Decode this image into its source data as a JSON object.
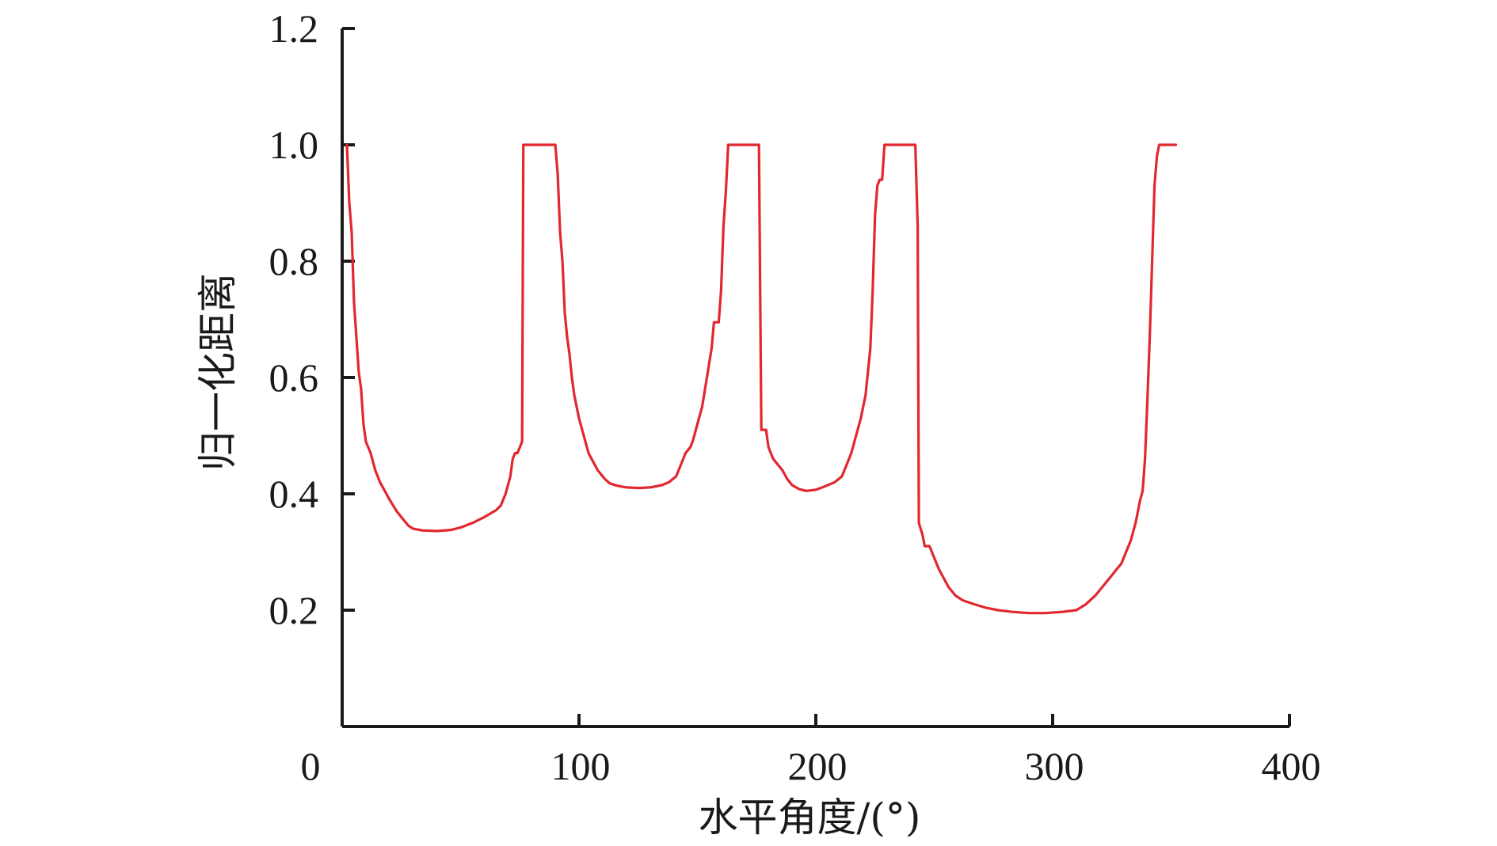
{
  "chart_data": {
    "type": "line",
    "title": "",
    "xlabel": "水平角度/(°)",
    "ylabel": "归一化距离",
    "xlim": [
      0,
      400
    ],
    "ylim": [
      0,
      1.2
    ],
    "xticks": [
      0,
      100,
      200,
      300,
      400
    ],
    "yticks": [
      0.2,
      0.4,
      0.6,
      0.8,
      1.0,
      1.2
    ],
    "xtick_labels": [
      "0",
      "100",
      "200",
      "300",
      "400"
    ],
    "ytick_labels": [
      "0.2",
      "0.4",
      "0.6",
      "0.8",
      "1.0",
      "1.2"
    ],
    "grid": false,
    "series": [
      {
        "color": "#e0282e",
        "points": [
          [
            2,
            1.0
          ],
          [
            3,
            0.9
          ],
          [
            4,
            0.85
          ],
          [
            5,
            0.73
          ],
          [
            6,
            0.67
          ],
          [
            7,
            0.61
          ],
          [
            8,
            0.58
          ],
          [
            9,
            0.52
          ],
          [
            10,
            0.49
          ],
          [
            12,
            0.47
          ],
          [
            14,
            0.44
          ],
          [
            16,
            0.42
          ],
          [
            18,
            0.405
          ],
          [
            20,
            0.39
          ],
          [
            23,
            0.37
          ],
          [
            26,
            0.355
          ],
          [
            28,
            0.345
          ],
          [
            30,
            0.34
          ],
          [
            34,
            0.337
          ],
          [
            40,
            0.336
          ],
          [
            46,
            0.338
          ],
          [
            50,
            0.342
          ],
          [
            55,
            0.35
          ],
          [
            60,
            0.36
          ],
          [
            65,
            0.372
          ],
          [
            67,
            0.38
          ],
          [
            69,
            0.4
          ],
          [
            71,
            0.43
          ],
          [
            72,
            0.46
          ],
          [
            73,
            0.47
          ],
          [
            74,
            0.47
          ],
          [
            75,
            0.48
          ],
          [
            76,
            0.49
          ],
          [
            76.5,
            1.0
          ],
          [
            80,
            1.0
          ],
          [
            85,
            1.0
          ],
          [
            90,
            1.0
          ],
          [
            91,
            0.95
          ],
          [
            92,
            0.85
          ],
          [
            93,
            0.8
          ],
          [
            94,
            0.71
          ],
          [
            95,
            0.67
          ],
          [
            96,
            0.64
          ],
          [
            97,
            0.6
          ],
          [
            98,
            0.57
          ],
          [
            100,
            0.53
          ],
          [
            102,
            0.5
          ],
          [
            104,
            0.47
          ],
          [
            106,
            0.455
          ],
          [
            108,
            0.44
          ],
          [
            111,
            0.425
          ],
          [
            113,
            0.418
          ],
          [
            116,
            0.414
          ],
          [
            120,
            0.411
          ],
          [
            125,
            0.41
          ],
          [
            130,
            0.411
          ],
          [
            135,
            0.415
          ],
          [
            138,
            0.42
          ],
          [
            141,
            0.43
          ],
          [
            143,
            0.45
          ],
          [
            145,
            0.47
          ],
          [
            147,
            0.48
          ],
          [
            148,
            0.49
          ],
          [
            150,
            0.52
          ],
          [
            152,
            0.55
          ],
          [
            154,
            0.6
          ],
          [
            156,
            0.65
          ],
          [
            157,
            0.695
          ],
          [
            159,
            0.695
          ],
          [
            160,
            0.75
          ],
          [
            161,
            0.86
          ],
          [
            162,
            0.92
          ],
          [
            163,
            1.0
          ],
          [
            170,
            1.0
          ],
          [
            176,
            1.0
          ],
          [
            177,
            0.51
          ],
          [
            179,
            0.51
          ],
          [
            180,
            0.48
          ],
          [
            182,
            0.46
          ],
          [
            184,
            0.45
          ],
          [
            186,
            0.44
          ],
          [
            188,
            0.425
          ],
          [
            190,
            0.415
          ],
          [
            193,
            0.408
          ],
          [
            196,
            0.405
          ],
          [
            200,
            0.407
          ],
          [
            204,
            0.413
          ],
          [
            208,
            0.42
          ],
          [
            211,
            0.43
          ],
          [
            213,
            0.45
          ],
          [
            215,
            0.47
          ],
          [
            217,
            0.5
          ],
          [
            219,
            0.53
          ],
          [
            221,
            0.57
          ],
          [
            223,
            0.65
          ],
          [
            224,
            0.75
          ],
          [
            225,
            0.88
          ],
          [
            226,
            0.93
          ],
          [
            227,
            0.94
          ],
          [
            228,
            0.94
          ],
          [
            229,
            1.0
          ],
          [
            235,
            1.0
          ],
          [
            242,
            1.0
          ],
          [
            243,
            0.86
          ],
          [
            243.5,
            0.35
          ],
          [
            245,
            0.33
          ],
          [
            246,
            0.31
          ],
          [
            248,
            0.31
          ],
          [
            250,
            0.29
          ],
          [
            252,
            0.27
          ],
          [
            254,
            0.255
          ],
          [
            256,
            0.24
          ],
          [
            259,
            0.225
          ],
          [
            262,
            0.217
          ],
          [
            267,
            0.21
          ],
          [
            272,
            0.204
          ],
          [
            277,
            0.2
          ],
          [
            283,
            0.197
          ],
          [
            290,
            0.195
          ],
          [
            297,
            0.195
          ],
          [
            304,
            0.197
          ],
          [
            310,
            0.2
          ],
          [
            314,
            0.21
          ],
          [
            318,
            0.225
          ],
          [
            321,
            0.24
          ],
          [
            323,
            0.25
          ],
          [
            325,
            0.26
          ],
          [
            327,
            0.27
          ],
          [
            329,
            0.28
          ],
          [
            331,
            0.3
          ],
          [
            333,
            0.32
          ],
          [
            335,
            0.35
          ],
          [
            337,
            0.39
          ],
          [
            338,
            0.405
          ],
          [
            339,
            0.46
          ],
          [
            340,
            0.56
          ],
          [
            341,
            0.67
          ],
          [
            342,
            0.8
          ],
          [
            343,
            0.93
          ],
          [
            344,
            0.98
          ],
          [
            345,
            1.0
          ],
          [
            352,
            1.0
          ]
        ]
      }
    ]
  }
}
